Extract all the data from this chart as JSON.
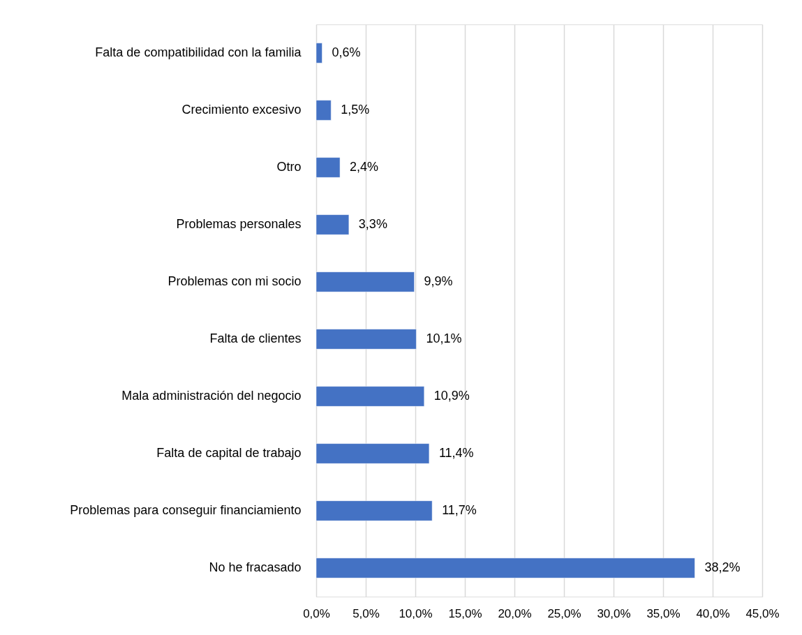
{
  "chart_data": {
    "type": "bar",
    "orientation": "horizontal",
    "categories": [
      "Falta de compatibilidad con la familia",
      "Crecimiento excesivo",
      "Otro",
      "Problemas personales",
      "Problemas con mi socio",
      "Falta de clientes",
      "Mala administración del negocio",
      "Falta de capital de trabajo",
      "Problemas para conseguir financiamiento",
      "No he fracasado"
    ],
    "values": [
      0.6,
      1.5,
      2.4,
      3.3,
      9.9,
      10.1,
      10.9,
      11.4,
      11.7,
      38.2
    ],
    "color": "#4472c4",
    "value_labels": [
      "0,6%",
      "1,5%",
      "2,4%",
      "3,3%",
      "9,9%",
      "10,1%",
      "10,9%",
      "11,4%",
      "11,7%",
      "38,2%"
    ],
    "xlim": [
      0,
      45
    ],
    "xticks": [
      {
        "value": 0,
        "label": "0,0%"
      },
      {
        "value": 5,
        "label": "5,0%"
      },
      {
        "value": 10,
        "label": "10,0%"
      },
      {
        "value": 15,
        "label": "15,0%"
      },
      {
        "value": 20,
        "label": "20,0%"
      },
      {
        "value": 25,
        "label": "25,0%"
      },
      {
        "value": 30,
        "label": "30,0%"
      },
      {
        "value": 35,
        "label": "35,0%"
      },
      {
        "value": 40,
        "label": "40,0%"
      },
      {
        "value": 45,
        "label": "45,0%"
      }
    ],
    "grid": "x"
  }
}
